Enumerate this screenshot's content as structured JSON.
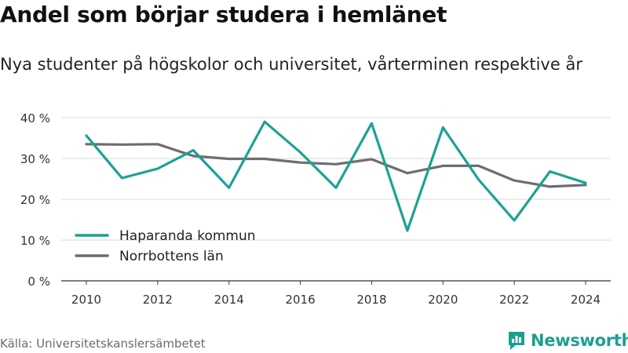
{
  "title": "Andel som börjar studera i hemlänet",
  "subtitle": "Nya studenter på högskolor och universitet, vårterminen respektive år",
  "source": "Källa: Universitetskanslersämbetet",
  "brand": {
    "name": "Newsworthy",
    "icon": "newsworthy-logo-icon",
    "color": "#1e9e92"
  },
  "chart_data": {
    "type": "line",
    "x": [
      2010,
      2011,
      2012,
      2013,
      2014,
      2015,
      2016,
      2017,
      2018,
      2019,
      2020,
      2021,
      2022,
      2023,
      2024
    ],
    "xticks": [
      2010,
      2012,
      2014,
      2016,
      2018,
      2020,
      2022,
      2024
    ],
    "xtick_labels": [
      "2010",
      "2012",
      "2014",
      "2016",
      "2018",
      "2020",
      "2022",
      "2024"
    ],
    "ylim": [
      0,
      40
    ],
    "yticks": [
      0,
      10,
      20,
      30,
      40
    ],
    "ytick_labels": [
      "0 %",
      "10 %",
      "20 %",
      "30 %",
      "40 %"
    ],
    "grid": true,
    "legend_position": "bottom-left",
    "series": [
      {
        "name": "Haparanda kommun",
        "color": "#1aa393",
        "values": [
          35.6,
          25.2,
          27.5,
          32.0,
          22.8,
          39.0,
          31.5,
          22.8,
          38.6,
          12.3,
          37.6,
          24.8,
          14.8,
          26.8,
          24.0
        ]
      },
      {
        "name": "Norrbottens län",
        "color": "#6f6c74",
        "values": [
          33.5,
          33.4,
          33.5,
          30.6,
          29.9,
          29.9,
          29.0,
          28.6,
          29.8,
          26.4,
          28.2,
          28.2,
          24.6,
          23.1,
          23.5
        ]
      }
    ]
  }
}
